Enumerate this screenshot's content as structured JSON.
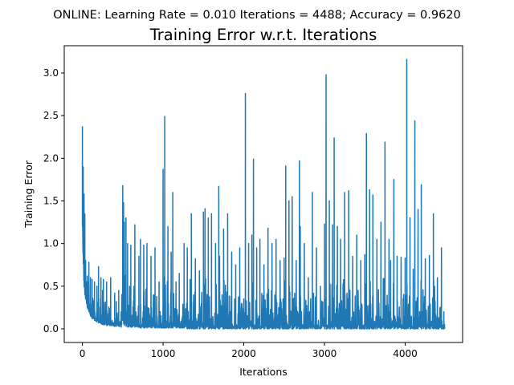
{
  "chart_data": {
    "type": "line",
    "suptitle": "ONLINE: Learning Rate = 0.010 Iterations = 4488; Accuracy = 0.9620",
    "title": "Training Error w.r.t. Iterations",
    "xlabel": "Iterations",
    "ylabel": "Training Error",
    "xlim": [
      -225,
      4712
    ],
    "ylim": [
      -0.16,
      3.32
    ],
    "xticks": [
      0,
      1000,
      2000,
      3000,
      4000
    ],
    "xtick_labels": [
      "0",
      "1000",
      "2000",
      "3000",
      "4000"
    ],
    "yticks": [
      0.0,
      0.5,
      1.0,
      1.5,
      2.0,
      2.5,
      3.0
    ],
    "ytick_labels": [
      "0.0",
      "0.5",
      "1.0",
      "1.5",
      "2.0",
      "2.5",
      "3.0"
    ],
    "grid": false,
    "line_color": "#1f77b4",
    "series": [
      {
        "iterations": [
          0,
          10,
          20,
          30,
          40,
          50,
          60,
          80,
          100,
          120,
          150,
          180,
          200,
          230,
          250,
          260,
          300,
          350,
          400,
          420,
          450,
          480,
          500,
          510,
          520,
          540,
          560,
          600,
          650,
          700,
          720,
          760,
          800,
          850,
          900,
          950,
          1000,
          1020,
          1060,
          1100,
          1120,
          1160,
          1200,
          1260,
          1300,
          1350,
          1400,
          1450,
          1500,
          1520,
          1560,
          1600,
          1650,
          1690,
          1700,
          1750,
          1800,
          1850,
          1900,
          1950,
          2000,
          2020,
          2060,
          2100,
          2120,
          2160,
          2200,
          2250,
          2300,
          2350,
          2400,
          2450,
          2500,
          2520,
          2560,
          2600,
          2650,
          2690,
          2700,
          2750,
          2800,
          2850,
          2900,
          2950,
          3000,
          3020,
          3060,
          3100,
          3120,
          3160,
          3200,
          3250,
          3300,
          3350,
          3400,
          3450,
          3500,
          3520,
          3560,
          3600,
          3650,
          3700,
          3750,
          3800,
          3820,
          3860,
          3900,
          3950,
          4000,
          4020,
          4060,
          4100,
          4120,
          4160,
          4200,
          4250,
          4300,
          4350,
          4400,
          4450,
          4480,
          4488
        ],
        "error": [
          2.37,
          1.9,
          1.58,
          1.35,
          0.8,
          0.55,
          0.62,
          0.78,
          0.6,
          0.58,
          0.55,
          0.5,
          0.73,
          0.6,
          0.45,
          0.58,
          0.55,
          0.6,
          0.42,
          0.32,
          0.45,
          0.2,
          1.68,
          1.48,
          1.25,
          1.3,
          1.0,
          0.98,
          1.22,
          0.85,
          1.05,
          0.98,
          1.0,
          0.85,
          0.95,
          0.55,
          1.87,
          2.49,
          1.2,
          0.9,
          1.6,
          0.55,
          0.65,
          1.0,
          0.95,
          1.35,
          0.82,
          0.68,
          1.37,
          1.41,
          1.3,
          1.35,
          1.0,
          1.67,
          0.85,
          1.17,
          1.35,
          0.9,
          0.75,
          0.95,
          0.35,
          2.76,
          1.0,
          1.1,
          1.99,
          0.95,
          1.05,
          0.75,
          1.18,
          1.0,
          1.05,
          0.8,
          0.83,
          1.91,
          1.5,
          1.55,
          0.8,
          1.97,
          1.2,
          1.0,
          0.6,
          1.6,
          0.95,
          0.5,
          1.23,
          2.98,
          1.5,
          1.22,
          2.24,
          1.2,
          1.05,
          1.6,
          1.62,
          0.85,
          1.1,
          0.8,
          0.87,
          2.29,
          1.63,
          1.57,
          1.05,
          1.25,
          2.19,
          1.05,
          0.8,
          1.75,
          0.85,
          0.84,
          0.83,
          3.16,
          1.3,
          0.7,
          2.44,
          1.4,
          1.69,
          0.82,
          0.86,
          1.35,
          0.6,
          0.95,
          0.2,
          0.05
        ],
        "floor": [
          1.2,
          0.8,
          0.5,
          0.4,
          0.35,
          0.3,
          0.25,
          0.2,
          0.15,
          0.12,
          0.1,
          0.08,
          0.07,
          0.06,
          0.05,
          0.05,
          0.04,
          0.04,
          0.03,
          0.03,
          0.03,
          0.02,
          0.1,
          0.06,
          0.04,
          0.03,
          0.02,
          0.02,
          0.02,
          0.02,
          0.01,
          0.01,
          0.01,
          0.01,
          0.01,
          0.01,
          0.01,
          0.01,
          0.01,
          0.01,
          0.01,
          0.01,
          0.01,
          0.01,
          0.0,
          0.0,
          0.0,
          0.0,
          0.0,
          0.0,
          0.0,
          0.0,
          0.0,
          0.0,
          0.0,
          0.0,
          0.0,
          0.0,
          0.0,
          0.0,
          0.0,
          0.0,
          0.0,
          0.0,
          0.0,
          0.0,
          0.0,
          0.0,
          0.0,
          0.0,
          0.0,
          0.0,
          0.0,
          0.0,
          0.0,
          0.0,
          0.0,
          0.0,
          0.0,
          0.0,
          0.0,
          0.0,
          0.0,
          0.0,
          0.0,
          0.0,
          0.0,
          0.0,
          0.0,
          0.0,
          0.0,
          0.0,
          0.0,
          0.0,
          0.0,
          0.0,
          0.0,
          0.0,
          0.0,
          0.0,
          0.0,
          0.0,
          0.0,
          0.0,
          0.0,
          0.0,
          0.0,
          0.0,
          0.0,
          0.0,
          0.0,
          0.0,
          0.0,
          0.0,
          0.0,
          0.0,
          0.0,
          0.0,
          0.0,
          0.0,
          0.0,
          0.0
        ]
      }
    ]
  }
}
